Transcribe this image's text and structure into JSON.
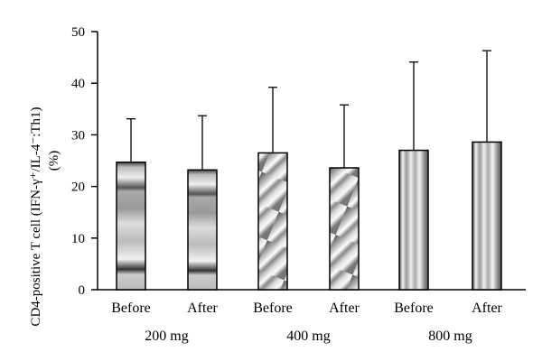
{
  "chart_data": {
    "type": "bar",
    "ylabel_line1": "CD4-positive T cell (IFN-γ⁺/IL-4⁻:Th1)",
    "ylabel_line2": "(%)",
    "ylim": [
      0,
      50
    ],
    "yticks": [
      "0",
      "10",
      "20",
      "30",
      "40",
      "50"
    ],
    "grid": false,
    "error_bars": "upper only (SD)",
    "categories": [
      "Before",
      "After",
      "Before",
      "After",
      "Before",
      "After"
    ],
    "groups": [
      {
        "label": "200 mg",
        "pattern": "horizontal-bands"
      },
      {
        "label": "400 mg",
        "pattern": "diagonal"
      },
      {
        "label": "800 mg",
        "pattern": "vertical-stripes"
      }
    ],
    "series": [
      {
        "values": [
          24.7,
          23.2,
          26.5,
          23.6,
          27.0,
          28.6
        ],
        "error_upper": [
          33.1,
          33.7,
          39.2,
          35.8,
          44.1,
          46.3
        ]
      }
    ]
  }
}
